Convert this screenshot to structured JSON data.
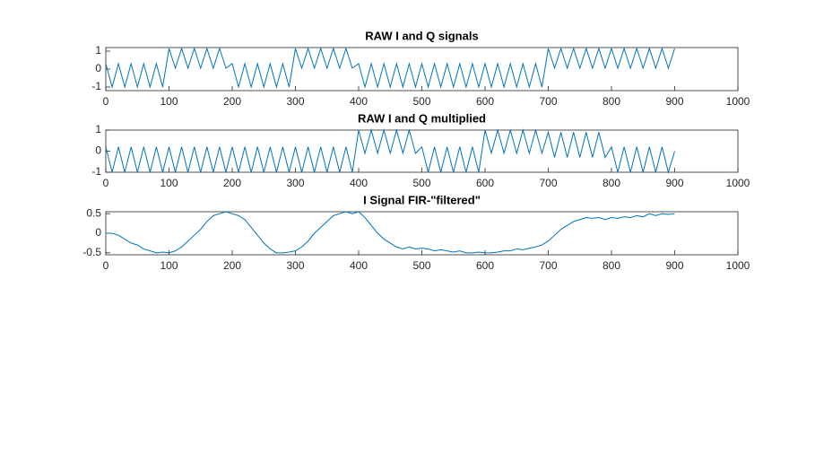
{
  "chart_data": [
    {
      "type": "line",
      "title": "RAW I and Q signals",
      "color": "#0072BD",
      "xlim": [
        0,
        1000
      ],
      "xticks": [
        0,
        100,
        200,
        300,
        400,
        500,
        600,
        700,
        800,
        900,
        1000
      ],
      "ylim": [
        -1.2,
        1.2
      ],
      "yticks": [
        -1,
        0,
        1
      ],
      "x": [
        0,
        10,
        20,
        30,
        40,
        50,
        60,
        70,
        80,
        90,
        100,
        110,
        120,
        130,
        140,
        150,
        160,
        170,
        180,
        190,
        200,
        210,
        220,
        230,
        240,
        250,
        260,
        270,
        280,
        290,
        300,
        310,
        320,
        330,
        340,
        350,
        360,
        370,
        380,
        390,
        400,
        410,
        420,
        430,
        440,
        450,
        460,
        470,
        480,
        490,
        500,
        510,
        520,
        530,
        540,
        550,
        560,
        570,
        580,
        590,
        600,
        610,
        620,
        630,
        640,
        650,
        660,
        670,
        680,
        690,
        700,
        710,
        720,
        730,
        740,
        750,
        760,
        770,
        780,
        790,
        800,
        810,
        820,
        830,
        840,
        850,
        860,
        870,
        880,
        890,
        900
      ],
      "values": [
        0.3,
        -1,
        0.3,
        -1,
        0.3,
        -1,
        0.3,
        -1,
        0.3,
        -1,
        1.15,
        0.05,
        1.15,
        0.05,
        1.15,
        0.05,
        1.15,
        0.05,
        1.15,
        0.05,
        0.3,
        -1,
        0.3,
        -1,
        0.3,
        -1,
        0.3,
        -1,
        0.3,
        -1,
        1.15,
        0.05,
        1.15,
        0.05,
        1.15,
        0.05,
        1.15,
        0.05,
        1.15,
        0.05,
        0.3,
        -1,
        0.3,
        -1,
        0.3,
        -1,
        0.3,
        -1,
        0.3,
        -1,
        0.3,
        -1,
        0.3,
        -1,
        0.3,
        -1,
        0.3,
        -1,
        0.3,
        -1,
        0.3,
        -1,
        0.3,
        -1,
        0.3,
        -1,
        0.3,
        -1,
        0.3,
        -1,
        1.15,
        0.05,
        1.15,
        0.05,
        1.15,
        0.05,
        1.15,
        0.05,
        1.15,
        0.05,
        1.15,
        0.05,
        1.15,
        0.05,
        1.15,
        0.05,
        1.15,
        0.05,
        1.15,
        0.05,
        1.15
      ]
    },
    {
      "type": "line",
      "title": "RAW I and Q multiplied",
      "color": "#0072BD",
      "xlim": [
        0,
        1000
      ],
      "xticks": [
        0,
        100,
        200,
        300,
        400,
        500,
        600,
        700,
        800,
        900,
        1000
      ],
      "ylim": [
        -1,
        1
      ],
      "yticks": [
        -1,
        0,
        1
      ],
      "x": [
        0,
        10,
        20,
        30,
        40,
        50,
        60,
        70,
        80,
        90,
        100,
        110,
        120,
        130,
        140,
        150,
        160,
        170,
        180,
        190,
        200,
        210,
        220,
        230,
        240,
        250,
        260,
        270,
        280,
        290,
        300,
        310,
        320,
        330,
        340,
        350,
        360,
        370,
        380,
        390,
        400,
        410,
        420,
        430,
        440,
        450,
        460,
        470,
        480,
        490,
        500,
        510,
        520,
        530,
        540,
        550,
        560,
        570,
        580,
        590,
        600,
        610,
        620,
        630,
        640,
        650,
        660,
        670,
        680,
        690,
        700,
        710,
        720,
        730,
        740,
        750,
        760,
        770,
        780,
        790,
        800,
        810,
        820,
        830,
        840,
        850,
        860,
        870,
        880,
        890,
        900
      ],
      "values": [
        0.2,
        -1,
        0.2,
        -1,
        0.2,
        -1,
        0.2,
        -1,
        0.2,
        -1,
        0.2,
        -1,
        0.2,
        -1,
        0.2,
        -1,
        0.2,
        -1,
        0.2,
        -1,
        0.2,
        -1,
        0.2,
        -1,
        0.2,
        -1,
        0.2,
        -1,
        0.2,
        -1,
        0.2,
        -1,
        0.2,
        -1,
        0.2,
        -1,
        0.2,
        -1,
        0.2,
        -1,
        1,
        -0.1,
        1,
        -0.1,
        1,
        -0.1,
        1,
        -0.1,
        1,
        -0.1,
        0.2,
        -1,
        0.2,
        -1,
        0.2,
        -1,
        0.2,
        -1,
        0.2,
        -1,
        1,
        -0.1,
        1,
        -0.1,
        1,
        -0.1,
        1,
        -0.1,
        1,
        -0.1,
        0.9,
        -0.3,
        0.9,
        -0.3,
        0.9,
        -0.3,
        0.9,
        -0.3,
        0.9,
        -0.3,
        0.2,
        -1,
        0.2,
        -1,
        0.2,
        -1,
        0.2,
        -1,
        0.2,
        -1,
        0
      ]
    },
    {
      "type": "line",
      "title": "I Signal FIR-\"filtered\"",
      "color": "#0072BD",
      "xlim": [
        0,
        1000
      ],
      "xticks": [
        0,
        100,
        200,
        300,
        400,
        500,
        600,
        700,
        800,
        900,
        1000
      ],
      "ylim": [
        -0.55,
        0.55
      ],
      "yticks": [
        -0.5,
        0,
        0.5
      ],
      "x": [
        0,
        10,
        20,
        30,
        40,
        50,
        60,
        70,
        80,
        90,
        100,
        110,
        120,
        130,
        140,
        150,
        160,
        170,
        180,
        190,
        200,
        210,
        220,
        230,
        240,
        250,
        260,
        270,
        280,
        290,
        300,
        310,
        320,
        330,
        340,
        350,
        360,
        370,
        380,
        390,
        400,
        410,
        420,
        430,
        440,
        450,
        460,
        470,
        480,
        490,
        500,
        510,
        520,
        530,
        540,
        550,
        560,
        570,
        580,
        590,
        600,
        610,
        620,
        630,
        640,
        650,
        660,
        670,
        680,
        690,
        700,
        710,
        720,
        730,
        740,
        750,
        760,
        770,
        780,
        790,
        800,
        810,
        820,
        830,
        840,
        850,
        860,
        870,
        880,
        890,
        900
      ],
      "values": [
        0,
        0,
        -0.05,
        -0.15,
        -0.25,
        -0.3,
        -0.4,
        -0.45,
        -0.5,
        -0.48,
        -0.5,
        -0.45,
        -0.35,
        -0.2,
        -0.05,
        0.1,
        0.3,
        0.45,
        0.5,
        0.55,
        0.5,
        0.45,
        0.35,
        0.15,
        -0.05,
        -0.25,
        -0.4,
        -0.5,
        -0.5,
        -0.48,
        -0.45,
        -0.35,
        -0.2,
        0,
        0.15,
        0.3,
        0.45,
        0.5,
        0.55,
        0.5,
        0.55,
        0.4,
        0.2,
        0,
        -0.15,
        -0.25,
        -0.35,
        -0.4,
        -0.35,
        -0.4,
        -0.38,
        -0.4,
        -0.45,
        -0.42,
        -0.45,
        -0.48,
        -0.45,
        -0.5,
        -0.5,
        -0.48,
        -0.5,
        -0.5,
        -0.48,
        -0.45,
        -0.45,
        -0.4,
        -0.42,
        -0.38,
        -0.35,
        -0.3,
        -0.2,
        -0.05,
        0.1,
        0.2,
        0.3,
        0.35,
        0.4,
        0.38,
        0.4,
        0.35,
        0.4,
        0.38,
        0.42,
        0.4,
        0.45,
        0.42,
        0.5,
        0.45,
        0.5,
        0.48,
        0.5
      ]
    }
  ]
}
